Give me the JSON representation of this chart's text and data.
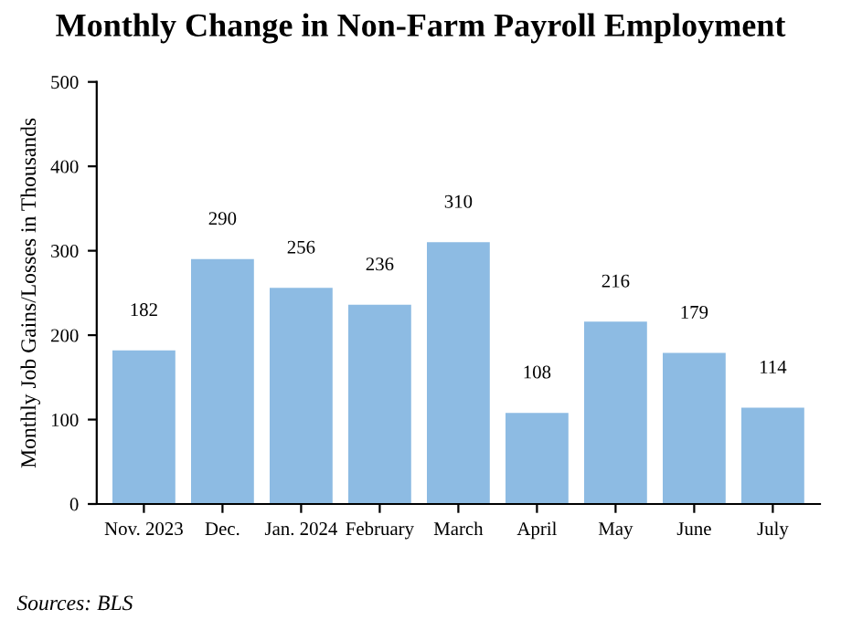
{
  "chart_data": {
    "type": "bar",
    "title": "Monthly Change in Non-Farm Payroll Employment",
    "ylabel": "Monthly Job Gains/Losses in Thousands",
    "categories": [
      "Nov. 2023",
      "Dec.",
      "Jan. 2024",
      "February",
      "March",
      "April",
      "May",
      "June",
      "July"
    ],
    "values": [
      182,
      290,
      256,
      236,
      310,
      108,
      216,
      179,
      114
    ],
    "color": "#8dbbe3",
    "ylim": [
      0,
      500
    ],
    "yticks": [
      0,
      100,
      200,
      300,
      400,
      500
    ],
    "data_labels": true,
    "grid": false,
    "annotations": [
      "Sources: BLS"
    ]
  }
}
